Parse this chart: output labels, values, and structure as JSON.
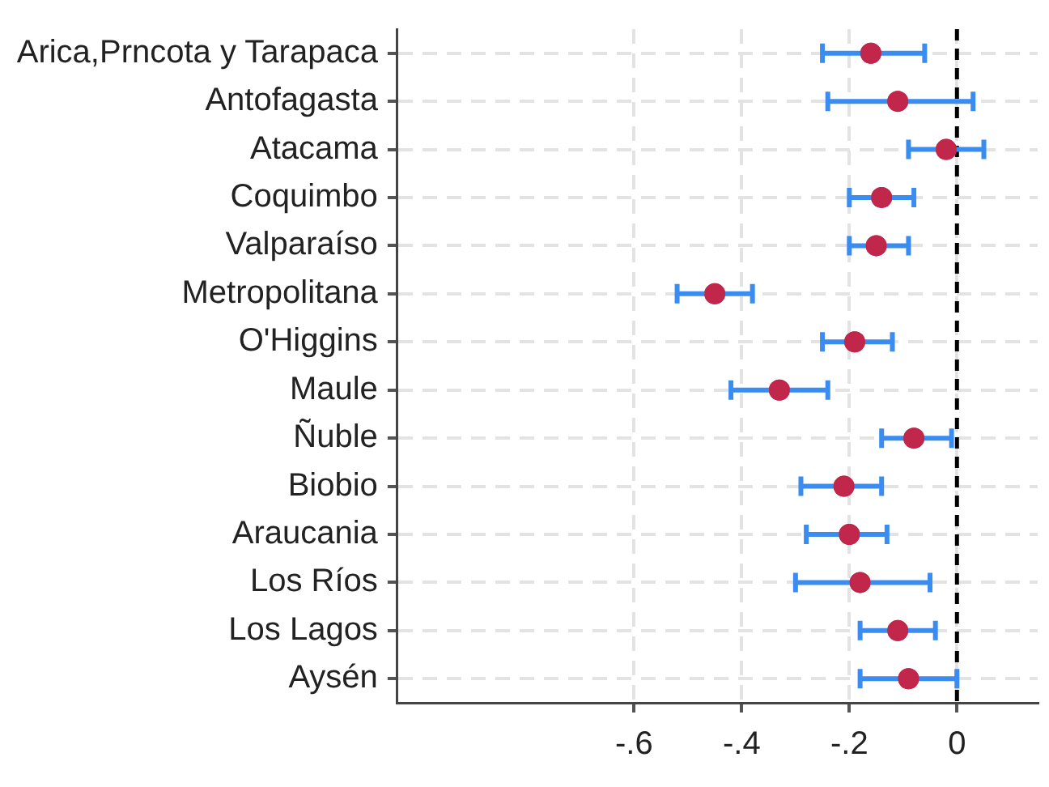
{
  "chart_data": {
    "type": "scatter",
    "orientation": "horizontal",
    "categories": [
      "Arica,Prncota y Tarapaca",
      "Antofagasta",
      "Atacama",
      "Coquimbo",
      "Valparaíso",
      "Metropolitana",
      "O'Higgins",
      "Maule",
      "Ñuble",
      "Biobio",
      "Araucania",
      "Los Ríos",
      "Los Lagos",
      "Aysén"
    ],
    "series": [
      {
        "color": "#c1264b",
        "values": [
          -0.16,
          -0.11,
          -0.02,
          -0.14,
          -0.15,
          -0.45,
          -0.19,
          -0.33,
          -0.08,
          -0.21,
          -0.2,
          -0.18,
          -0.11,
          -0.09
        ],
        "errors": [
          [
            -0.25,
            -0.06
          ],
          [
            -0.24,
            0.03
          ],
          [
            -0.09,
            0.05
          ],
          [
            -0.2,
            -0.08
          ],
          [
            -0.2,
            -0.09
          ],
          [
            -0.52,
            -0.38
          ],
          [
            -0.25,
            -0.12
          ],
          [
            -0.42,
            -0.24
          ],
          [
            -0.14,
            -0.01
          ],
          [
            -0.29,
            -0.14
          ],
          [
            -0.28,
            -0.13
          ],
          [
            -0.3,
            -0.05
          ],
          [
            -0.18,
            -0.04
          ],
          [
            -0.18,
            0
          ]
        ]
      }
    ],
    "xlim": [
      -1.04,
      0.15
    ],
    "xticks": [
      {
        "value": -0.6,
        "label": "-.6"
      },
      {
        "value": -0.4,
        "label": "-.4"
      },
      {
        "value": -0.2,
        "label": "-.2"
      },
      0
    ],
    "ref_lines": [
      {
        "axis": "x",
        "value": 0,
        "color": "#000000",
        "line_style": "dashed"
      }
    ],
    "grid": true,
    "marker": "circle",
    "legend": false
  }
}
